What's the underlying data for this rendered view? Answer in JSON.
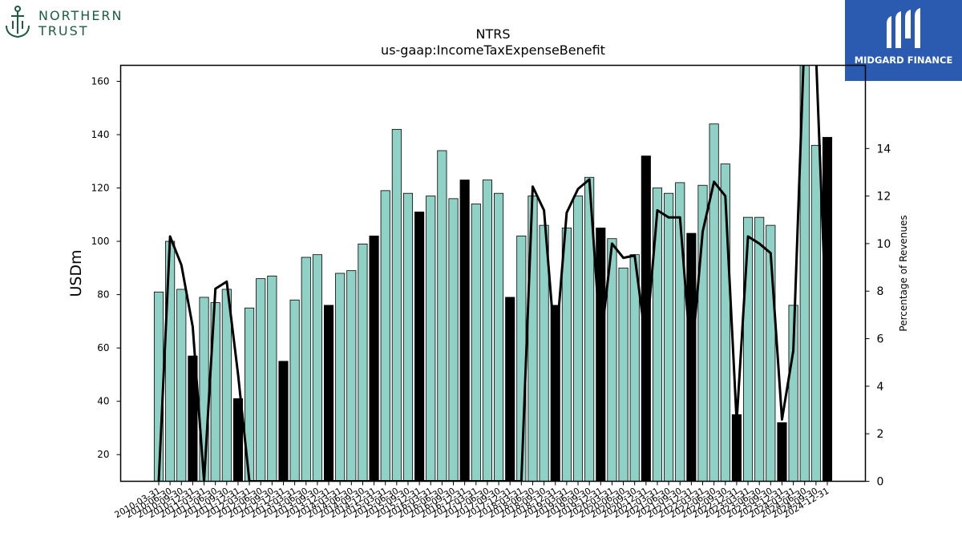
{
  "logos": {
    "left": {
      "line1": "NORTHERN",
      "line2": "TRUST"
    },
    "right": {
      "text": "MIDGARD FINANCE"
    }
  },
  "chart_data": {
    "type": "bar",
    "title": "NTRS",
    "subtitle": "us-gaap:IncomeTaxExpenseBenefit",
    "ylabel": "USDm",
    "y2label": "Percentage of Revenues",
    "ylim": [
      10,
      166
    ],
    "y2lim": [
      0,
      17.5
    ],
    "yticks": [
      20,
      40,
      60,
      80,
      100,
      120,
      140,
      160
    ],
    "y2ticks": [
      0,
      2,
      4,
      6,
      8,
      10,
      12,
      14
    ],
    "categories": [
      "2010-03-31",
      "2010-06-30",
      "2010-09-30",
      "2010-12-31",
      "2011-03-31",
      "2011-06-30",
      "2011-09-30",
      "2011-12-31",
      "2012-03-31",
      "2012-06-30",
      "2012-09-30",
      "2012-12-31",
      "2013-03-31",
      "2013-06-30",
      "2013-09-30",
      "2013-12-31",
      "2014-03-31",
      "2014-06-30",
      "2014-09-30",
      "2014-12-31",
      "2015-03-31",
      "2015-06-30",
      "2015-09-30",
      "2015-12-31",
      "2016-03-31",
      "2016-06-30",
      "2016-09-30",
      "2016-12-31",
      "2017-03-31",
      "2017-06-30",
      "2017-09-30",
      "2017-12-31",
      "2018-03-31",
      "2018-06-30",
      "2018-09-30",
      "2018-12-31",
      "2019-03-31",
      "2019-06-30",
      "2019-09-30",
      "2019-12-31",
      "2020-03-31",
      "2020-06-30",
      "2020-09-30",
      "2020-12-31",
      "2021-03-31",
      "2021-06-30",
      "2021-09-30",
      "2021-12-31",
      "2022-03-31",
      "2022-06-30",
      "2022-09-30",
      "2022-12-31",
      "2023-03-31",
      "2023-06-30",
      "2023-09-30",
      "2023-12-31",
      "2024-03-31",
      "2024-06-30",
      "2024-09-30",
      "2024-12-31"
    ],
    "series": [
      {
        "type": "bar",
        "values": [
          81,
          100,
          82,
          57,
          79,
          77,
          82,
          41,
          75,
          86,
          87,
          55,
          78,
          94,
          95,
          76,
          88,
          89,
          99,
          102,
          119,
          142,
          118,
          111,
          117,
          134,
          116,
          123,
          114,
          123,
          118,
          79,
          102,
          117,
          106,
          76,
          105,
          117,
          124,
          105,
          101,
          90,
          95,
          132,
          120,
          118,
          122,
          103,
          121,
          144,
          129,
          35,
          109,
          109,
          106,
          32,
          76,
          171,
          136,
          139
        ],
        "highlight": [
          false,
          false,
          false,
          true,
          false,
          false,
          false,
          true,
          false,
          false,
          false,
          true,
          false,
          false,
          false,
          true,
          false,
          false,
          false,
          true,
          false,
          false,
          false,
          true,
          false,
          false,
          false,
          true,
          false,
          false,
          false,
          true,
          false,
          false,
          false,
          true,
          false,
          false,
          false,
          true,
          false,
          false,
          false,
          true,
          false,
          false,
          false,
          true,
          false,
          false,
          false,
          true,
          false,
          false,
          false,
          true,
          false,
          false,
          false,
          true
        ]
      },
      {
        "type": "line",
        "axis": "right",
        "values": [
          0,
          10.3,
          9.1,
          6.5,
          0,
          8.1,
          8.4,
          4.5,
          0,
          0,
          0,
          0,
          0,
          0,
          0,
          0,
          0,
          0,
          0,
          0,
          0,
          0,
          0,
          0,
          0,
          0,
          0,
          0,
          0,
          0,
          0,
          0,
          0,
          12.4,
          11.4,
          5.5,
          11.3,
          12.3,
          12.7,
          5.8,
          10.0,
          9.4,
          9.5,
          5.8,
          11.4,
          11.1,
          11.1,
          5.0,
          10.5,
          12.6,
          12.0,
          2.5,
          10.3,
          10.0,
          9.6,
          2.6,
          5.5,
          19.0,
          18.0,
          5.5
        ]
      }
    ],
    "colors": {
      "bar": "#8fd1c4",
      "bar_highlight": "#000000",
      "line": "#000000",
      "edge": "#000000"
    },
    "grid": false
  }
}
